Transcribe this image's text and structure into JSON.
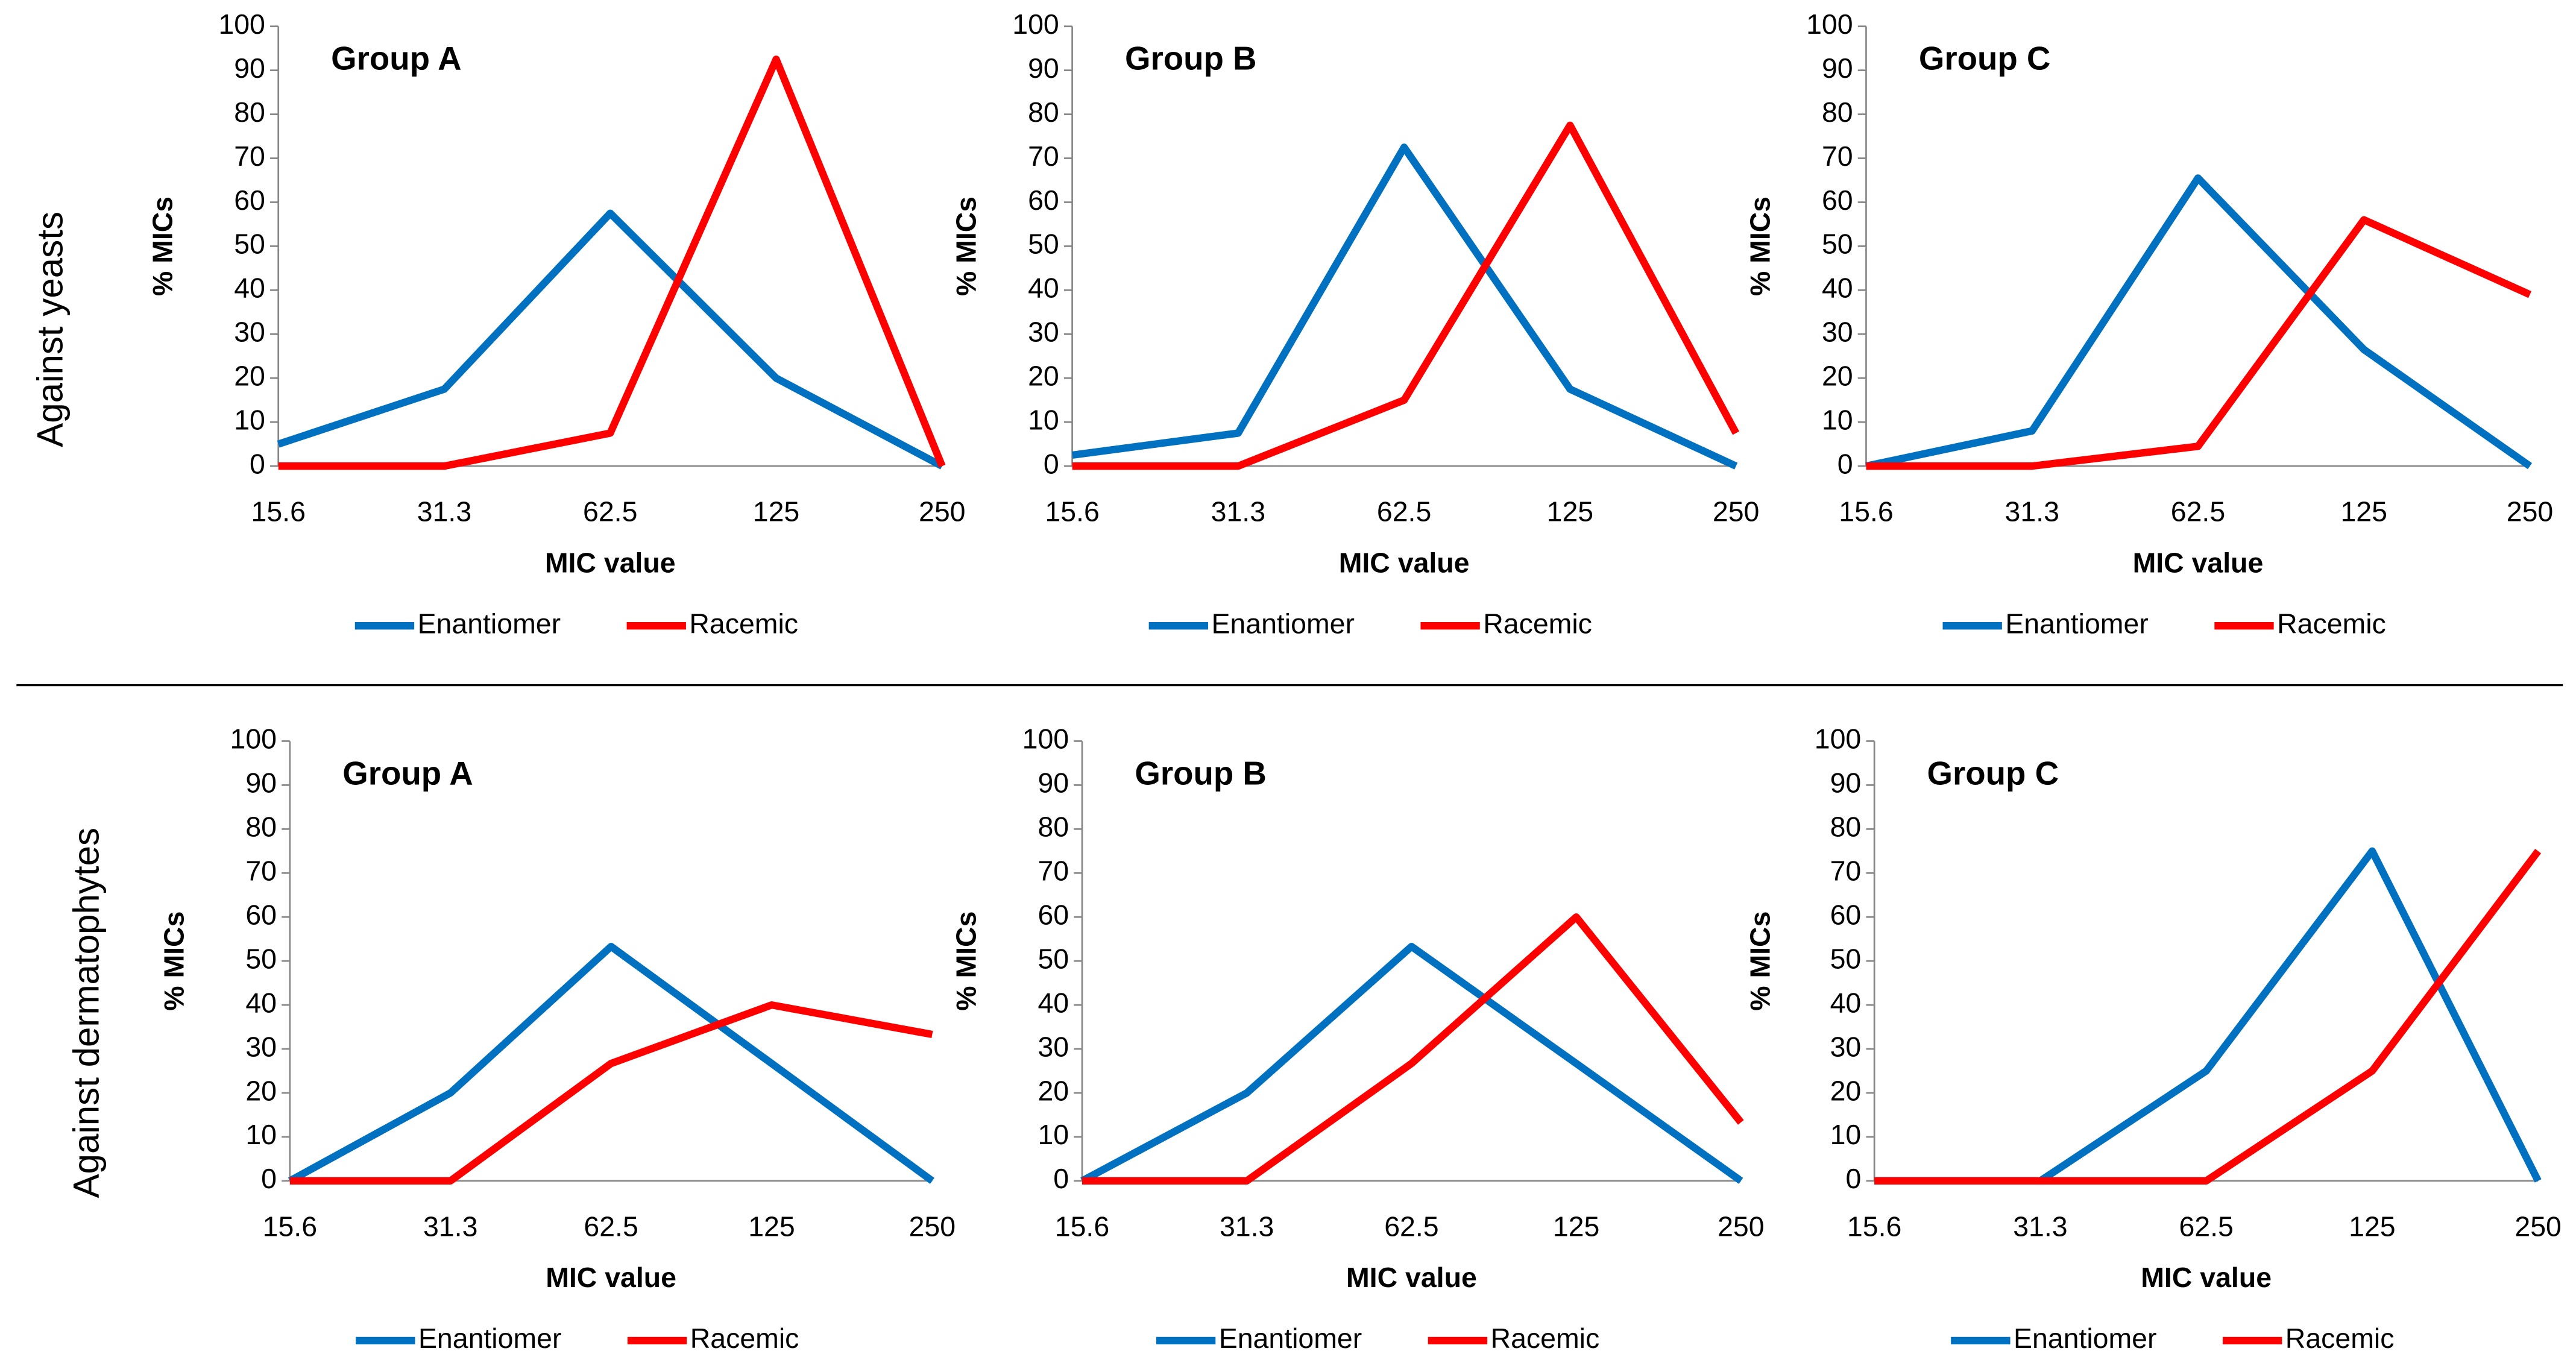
{
  "row_labels": [
    "Against yeasts",
    "Against dermatophytes"
  ],
  "chart_data": [
    {
      "type": "line",
      "title": "Group A",
      "x_label": "MIC value",
      "y_label": "% MICs",
      "categories": [
        "15.6",
        "31.3",
        "62.5",
        "125",
        "250"
      ],
      "ylim": [
        0,
        100
      ],
      "yticks": [
        0,
        10,
        20,
        30,
        40,
        50,
        60,
        70,
        80,
        90,
        100
      ],
      "legend": "bottom",
      "series": [
        {
          "name": "Enantiomer",
          "color": "#0070c0",
          "values": [
            5,
            17.5,
            57.5,
            20,
            0
          ]
        },
        {
          "name": "Racemic",
          "color": "#ff0000",
          "values": [
            0,
            0,
            7.5,
            92.5,
            0
          ]
        }
      ]
    },
    {
      "type": "line",
      "title": "Group B",
      "x_label": "MIC value",
      "y_label": "% MICs",
      "categories": [
        "15.6",
        "31.3",
        "62.5",
        "125",
        "250"
      ],
      "ylim": [
        0,
        100
      ],
      "yticks": [
        0,
        10,
        20,
        30,
        40,
        50,
        60,
        70,
        80,
        90,
        100
      ],
      "legend": "bottom",
      "series": [
        {
          "name": "Enantiomer",
          "color": "#0070c0",
          "values": [
            2.5,
            7.5,
            72.5,
            17.5,
            0
          ]
        },
        {
          "name": "Racemic",
          "color": "#ff0000",
          "values": [
            0,
            0,
            15,
            77.5,
            7.5
          ]
        }
      ]
    },
    {
      "type": "line",
      "title": "Group C",
      "x_label": "MIC value",
      "y_label": "% MICs",
      "categories": [
        "15.6",
        "31.3",
        "62.5",
        "125",
        "250"
      ],
      "ylim": [
        0,
        100
      ],
      "yticks": [
        0,
        10,
        20,
        30,
        40,
        50,
        60,
        70,
        80,
        90,
        100
      ],
      "legend": "bottom",
      "series": [
        {
          "name": "Enantiomer",
          "color": "#0070c0",
          "values": [
            0,
            8,
            65.5,
            26.5,
            0
          ]
        },
        {
          "name": "Racemic",
          "color": "#ff0000",
          "values": [
            0,
            0,
            4.5,
            56,
            39
          ]
        }
      ]
    },
    {
      "type": "line",
      "title": "Group A",
      "x_label": "MIC value",
      "y_label": "% MICs",
      "categories": [
        "15.6",
        "31.3",
        "62.5",
        "125",
        "250"
      ],
      "ylim": [
        0,
        100
      ],
      "yticks": [
        0,
        10,
        20,
        30,
        40,
        50,
        60,
        70,
        80,
        90,
        100
      ],
      "legend": "bottom",
      "series": [
        {
          "name": "Enantiomer",
          "color": "#0070c0",
          "values": [
            0,
            20,
            53.3,
            26.7,
            0
          ]
        },
        {
          "name": "Racemic",
          "color": "#ff0000",
          "values": [
            0,
            0,
            26.7,
            40,
            33.3
          ]
        }
      ]
    },
    {
      "type": "line",
      "title": "Group B",
      "x_label": "MIC value",
      "y_label": "% MICs",
      "categories": [
        "15.6",
        "31.3",
        "62.5",
        "125",
        "250"
      ],
      "ylim": [
        0,
        100
      ],
      "yticks": [
        0,
        10,
        20,
        30,
        40,
        50,
        60,
        70,
        80,
        90,
        100
      ],
      "legend": "bottom",
      "series": [
        {
          "name": "Enantiomer",
          "color": "#0070c0",
          "values": [
            0,
            20,
            53.3,
            26.7,
            0
          ]
        },
        {
          "name": "Racemic",
          "color": "#ff0000",
          "values": [
            0,
            0,
            26.7,
            60,
            13.3
          ]
        }
      ]
    },
    {
      "type": "line",
      "title": "Group C",
      "x_label": "MIC value",
      "y_label": "% MICs",
      "categories": [
        "15.6",
        "31.3",
        "62.5",
        "125",
        "250"
      ],
      "ylim": [
        0,
        100
      ],
      "yticks": [
        0,
        10,
        20,
        30,
        40,
        50,
        60,
        70,
        80,
        90,
        100
      ],
      "legend": "bottom",
      "series": [
        {
          "name": "Enantiomer",
          "color": "#0070c0",
          "values": [
            0,
            0,
            25,
            75,
            0
          ]
        },
        {
          "name": "Racemic",
          "color": "#ff0000",
          "values": [
            0,
            0,
            0,
            25,
            75
          ]
        }
      ]
    }
  ]
}
